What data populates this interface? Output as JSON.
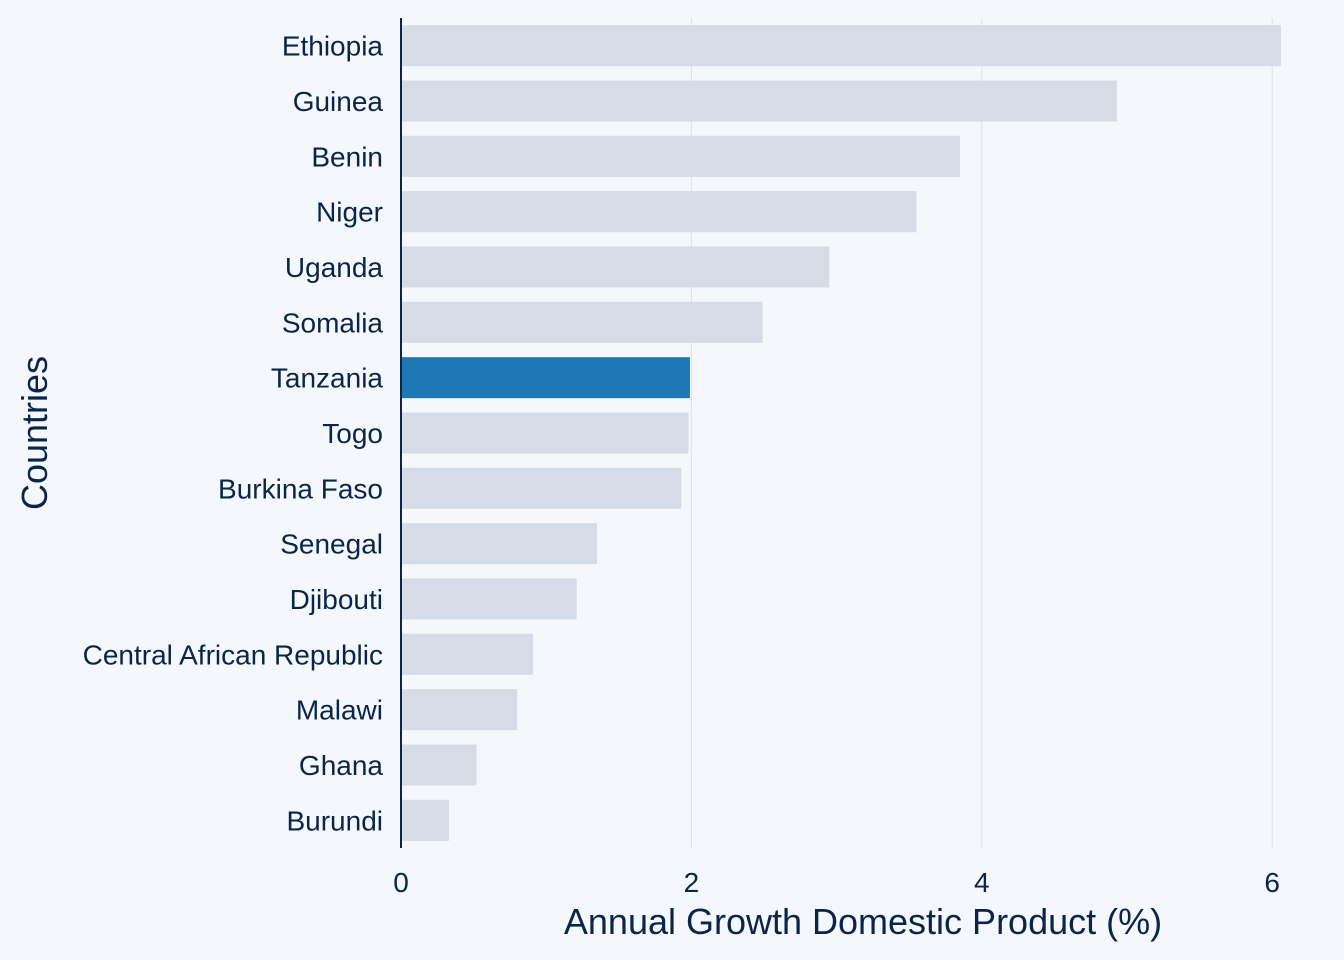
{
  "chart_data": {
    "type": "bar",
    "orientation": "horizontal",
    "categories": [
      "Ethiopia",
      "Guinea",
      "Benin",
      "Niger",
      "Uganda",
      "Somalia",
      "Tanzania",
      "Togo",
      "Burkina Faso",
      "Senegal",
      "Djibouti",
      "Central African Republic",
      "Malawi",
      "Ghana",
      "Burundi"
    ],
    "values": [
      6.06,
      4.93,
      3.85,
      3.55,
      2.95,
      2.49,
      1.99,
      1.98,
      1.93,
      1.35,
      1.21,
      0.91,
      0.8,
      0.52,
      0.33
    ],
    "highlight": "Tanzania",
    "xlabel": "Annual Growth Domestic Product (%)",
    "ylabel": "Countries",
    "xlim": [
      0,
      6.2
    ],
    "xticks": [
      0,
      2,
      4,
      6
    ],
    "grid": "vertical",
    "legend": "none",
    "colors": {
      "bar": "#d6dce5",
      "highlight": "#1f77b4",
      "text": "#0b2447",
      "axis": "#0b2447",
      "grid": "#dde2e9",
      "background": "#f4f7fb"
    }
  }
}
